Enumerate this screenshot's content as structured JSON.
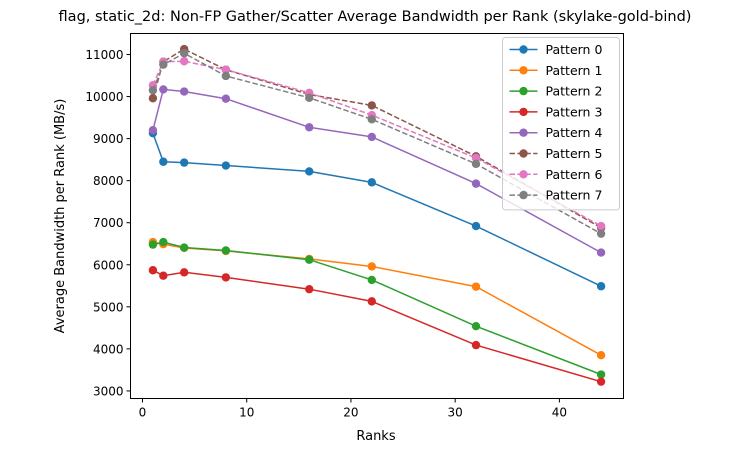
{
  "chart_data": {
    "type": "line",
    "title": "flag, static_2d: Non-FP Gather/Scatter Average Bandwidth per Rank (skylake-gold-bind)",
    "xlabel": "Ranks",
    "ylabel": "Average Bandwidth per Rank (MB/s)",
    "xlim": [
      -1.15,
      46.15
    ],
    "ylim": [
      2820,
      11500
    ],
    "xticks": [
      0,
      10,
      20,
      30,
      40
    ],
    "yticks": [
      3000,
      4000,
      5000,
      6000,
      7000,
      8000,
      9000,
      10000,
      11000
    ],
    "grid": false,
    "legend_position": "top-right",
    "x": [
      1,
      2,
      4,
      8,
      16,
      22,
      32,
      44
    ],
    "series": [
      {
        "name": "Pattern 0",
        "color": "#1f77b4",
        "dashed": false,
        "values": [
          9130,
          8450,
          8430,
          8360,
          8220,
          7960,
          6920,
          5490
        ]
      },
      {
        "name": "Pattern 1",
        "color": "#ff7f0e",
        "dashed": false,
        "values": [
          6540,
          6490,
          6400,
          6330,
          6140,
          5960,
          5480,
          3850
        ]
      },
      {
        "name": "Pattern 2",
        "color": "#2ca02c",
        "dashed": false,
        "values": [
          6480,
          6540,
          6410,
          6340,
          6120,
          5640,
          4540,
          3390
        ]
      },
      {
        "name": "Pattern 3",
        "color": "#d62728",
        "dashed": false,
        "values": [
          5870,
          5740,
          5820,
          5700,
          5420,
          5130,
          4090,
          3220
        ]
      },
      {
        "name": "Pattern 4",
        "color": "#9467bd",
        "dashed": false,
        "values": [
          9200,
          10170,
          10120,
          9950,
          9270,
          9040,
          7930,
          6290
        ]
      },
      {
        "name": "Pattern 5",
        "color": "#8c564b",
        "dashed": true,
        "values": [
          9960,
          10830,
          11130,
          10640,
          10050,
          9790,
          8580,
          6880
        ]
      },
      {
        "name": "Pattern 6",
        "color": "#e377c2",
        "dashed": true,
        "values": [
          10270,
          10830,
          10840,
          10640,
          10090,
          9560,
          8540,
          6920
        ]
      },
      {
        "name": "Pattern 7",
        "color": "#7f7f7f",
        "dashed": true,
        "values": [
          10150,
          10760,
          11030,
          10490,
          9970,
          9460,
          8400,
          6740
        ]
      }
    ]
  }
}
